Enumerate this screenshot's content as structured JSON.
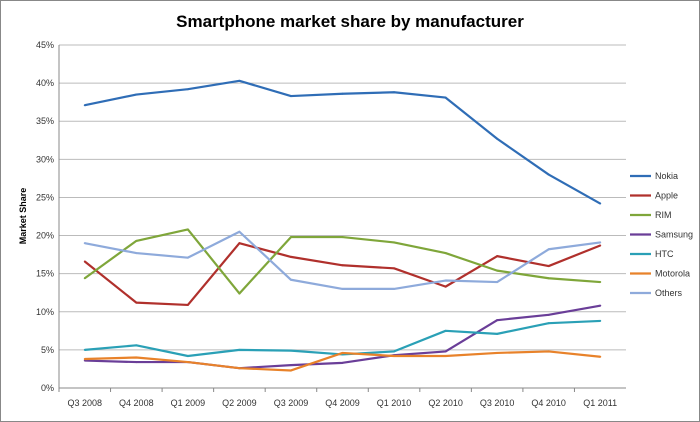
{
  "chart_data": {
    "type": "line",
    "title": "Smartphone market share by manufacturer",
    "xlabel": "",
    "ylabel": "Market Share",
    "ylim": [
      0,
      45
    ],
    "yticks": [
      "0%",
      "5%",
      "10%",
      "15%",
      "20%",
      "25%",
      "30%",
      "35%",
      "40%",
      "45%"
    ],
    "grid": true,
    "legend": "right",
    "categories": [
      "Q3 2008",
      "Q4 2008",
      "Q1 2009",
      "Q2 2009",
      "Q3 2009",
      "Q4 2009",
      "Q1 2010",
      "Q2 2010",
      "Q3 2010",
      "Q4 2010",
      "Q1 2011"
    ],
    "series": [
      {
        "name": "Nokia",
        "color": "#2f6db6",
        "values": [
          37.1,
          38.5,
          39.2,
          40.3,
          38.3,
          38.6,
          38.8,
          38.1,
          32.7,
          28.0,
          24.2
        ]
      },
      {
        "name": "Apple",
        "color": "#b0302c",
        "values": [
          16.6,
          11.2,
          10.9,
          19.0,
          17.2,
          16.1,
          15.7,
          13.3,
          17.3,
          16.0,
          18.7
        ]
      },
      {
        "name": "RIM",
        "color": "#7fa63a",
        "values": [
          14.4,
          19.3,
          20.8,
          12.4,
          19.8,
          19.8,
          19.1,
          17.7,
          15.4,
          14.4,
          13.9
        ]
      },
      {
        "name": "Samsung",
        "color": "#6a3e98",
        "values": [
          3.6,
          3.4,
          3.4,
          2.6,
          3.0,
          3.3,
          4.3,
          4.8,
          8.9,
          9.6,
          10.8
        ]
      },
      {
        "name": "HTC",
        "color": "#2aa0b6",
        "values": [
          5.0,
          5.6,
          4.2,
          5.0,
          4.9,
          4.4,
          4.8,
          7.5,
          7.1,
          8.5,
          8.8
        ]
      },
      {
        "name": "Motorola",
        "color": "#e8822a",
        "values": [
          3.8,
          4.0,
          3.4,
          2.6,
          2.3,
          4.6,
          4.2,
          4.2,
          4.6,
          4.8,
          4.1
        ]
      },
      {
        "name": "Others",
        "color": "#8eaadb",
        "values": [
          19.0,
          17.7,
          17.1,
          20.5,
          14.2,
          13.0,
          13.0,
          14.1,
          13.9,
          18.2,
          19.1
        ]
      }
    ]
  }
}
